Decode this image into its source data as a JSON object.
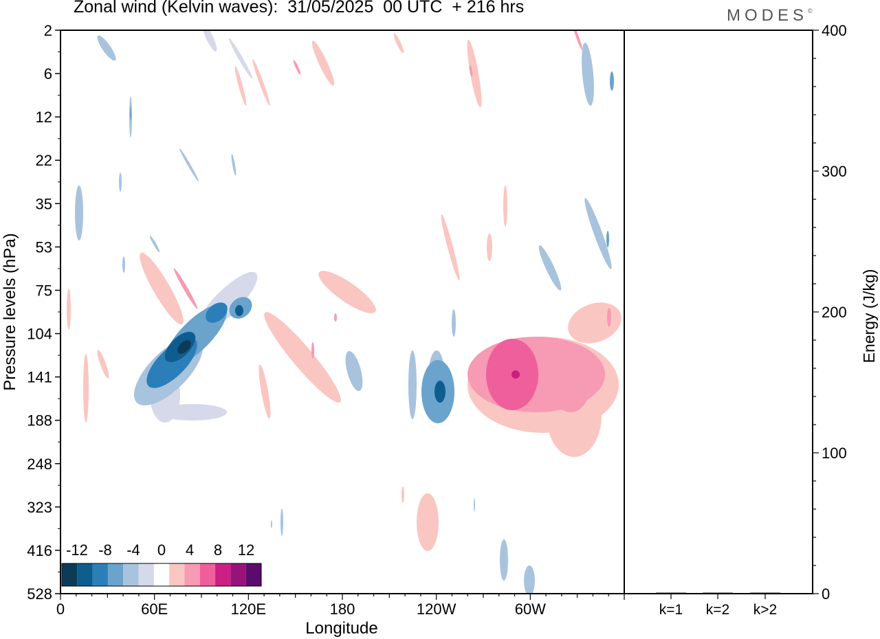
{
  "chart_data": [
    {
      "type": "heatmap",
      "title": "Zonal wind (Kelvin waves):  31/05/2025  00 UTC  + 216 hrs",
      "brand": "MODES",
      "brand_mark": "©",
      "xlabel": "Longitude",
      "ylabel": "Pressure levels (hPa)",
      "x_ticks": [
        "0",
        "60E",
        "120E",
        "180",
        "120W",
        "60W"
      ],
      "x_tick_degrees": [
        0,
        60,
        120,
        180,
        240,
        300
      ],
      "xlim": [
        0,
        360
      ],
      "y_ticks": [
        "2",
        "6",
        "12",
        "22",
        "35",
        "53",
        "75",
        "104",
        "141",
        "188",
        "248",
        "323",
        "416",
        "528"
      ],
      "colorbar": {
        "labels": [
          "-12",
          "-8",
          "-4",
          "0",
          "4",
          "8",
          "12"
        ],
        "levels": [
          -14,
          -12,
          -10,
          -8,
          -6,
          -4,
          -2,
          2,
          4,
          6,
          8,
          10,
          12,
          14
        ],
        "colors": [
          "#0c3b57",
          "#0f5c8f",
          "#2b7fb8",
          "#6aa3cc",
          "#a8c3de",
          "#d5d9e9",
          "#ffffff",
          "#fac6c2",
          "#f79ab3",
          "#ee5f9c",
          "#cb1f84",
          "#98127c",
          "#5b0a6e"
        ]
      },
      "features": [
        {
          "sign": "negative",
          "lon": [
            75,
            95
          ],
          "level": [
            "104",
            "141"
          ],
          "peak": -12
        },
        {
          "sign": "negative",
          "lon": [
            120,
            128
          ],
          "level": [
            "141",
            "188"
          ],
          "peak": -8
        },
        {
          "sign": "positive",
          "lon": [
            265,
            290
          ],
          "level": [
            "104",
            "188"
          ],
          "peak": 8
        },
        {
          "sign": "positive",
          "lon": [
            95,
            125
          ],
          "level": [
            "104",
            "248"
          ],
          "peak": 4
        },
        {
          "sign": "positive",
          "lon": [
            40,
            55
          ],
          "level": [
            "75",
            "104"
          ],
          "peak": 6
        }
      ]
    },
    {
      "type": "bar",
      "categories": [
        "k=1",
        "k=2",
        "k>2"
      ],
      "values": [
        0.2,
        0.2,
        0.2
      ],
      "ylabel": "Energy (J/kg)",
      "ylim": [
        0,
        400
      ],
      "y_ticks": [
        "0",
        "100",
        "200",
        "300",
        "400"
      ]
    }
  ]
}
